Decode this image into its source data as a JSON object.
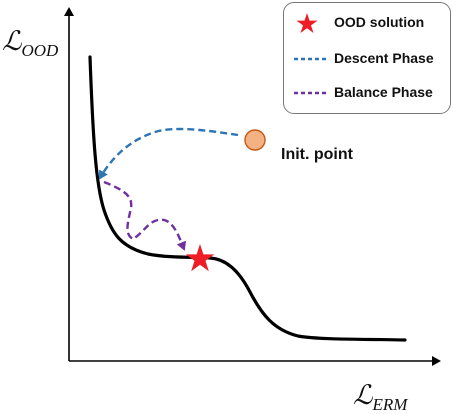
{
  "axes": {
    "y_label_main": "ℒ",
    "y_label_sub": "OOD",
    "x_label_main": "ℒ",
    "x_label_sub": "ERM"
  },
  "annotations": {
    "init_point_label": "Init. point"
  },
  "legend": {
    "items": [
      {
        "label": "OOD solution",
        "marker": "star",
        "color": "#ee1c24"
      },
      {
        "label": "Descent Phase",
        "marker": "dashed-line",
        "color": "#2e75b6"
      },
      {
        "label": "Balance Phase",
        "marker": "dashed-line",
        "color": "#7030a0"
      }
    ]
  },
  "colors": {
    "curve": "#000000",
    "init_point_fill": "#f4b183",
    "init_point_stroke": "#c55a11",
    "descent_arrow": "#2e75b6",
    "balance_arrow": "#7030a0",
    "star": "#ee1c24"
  }
}
